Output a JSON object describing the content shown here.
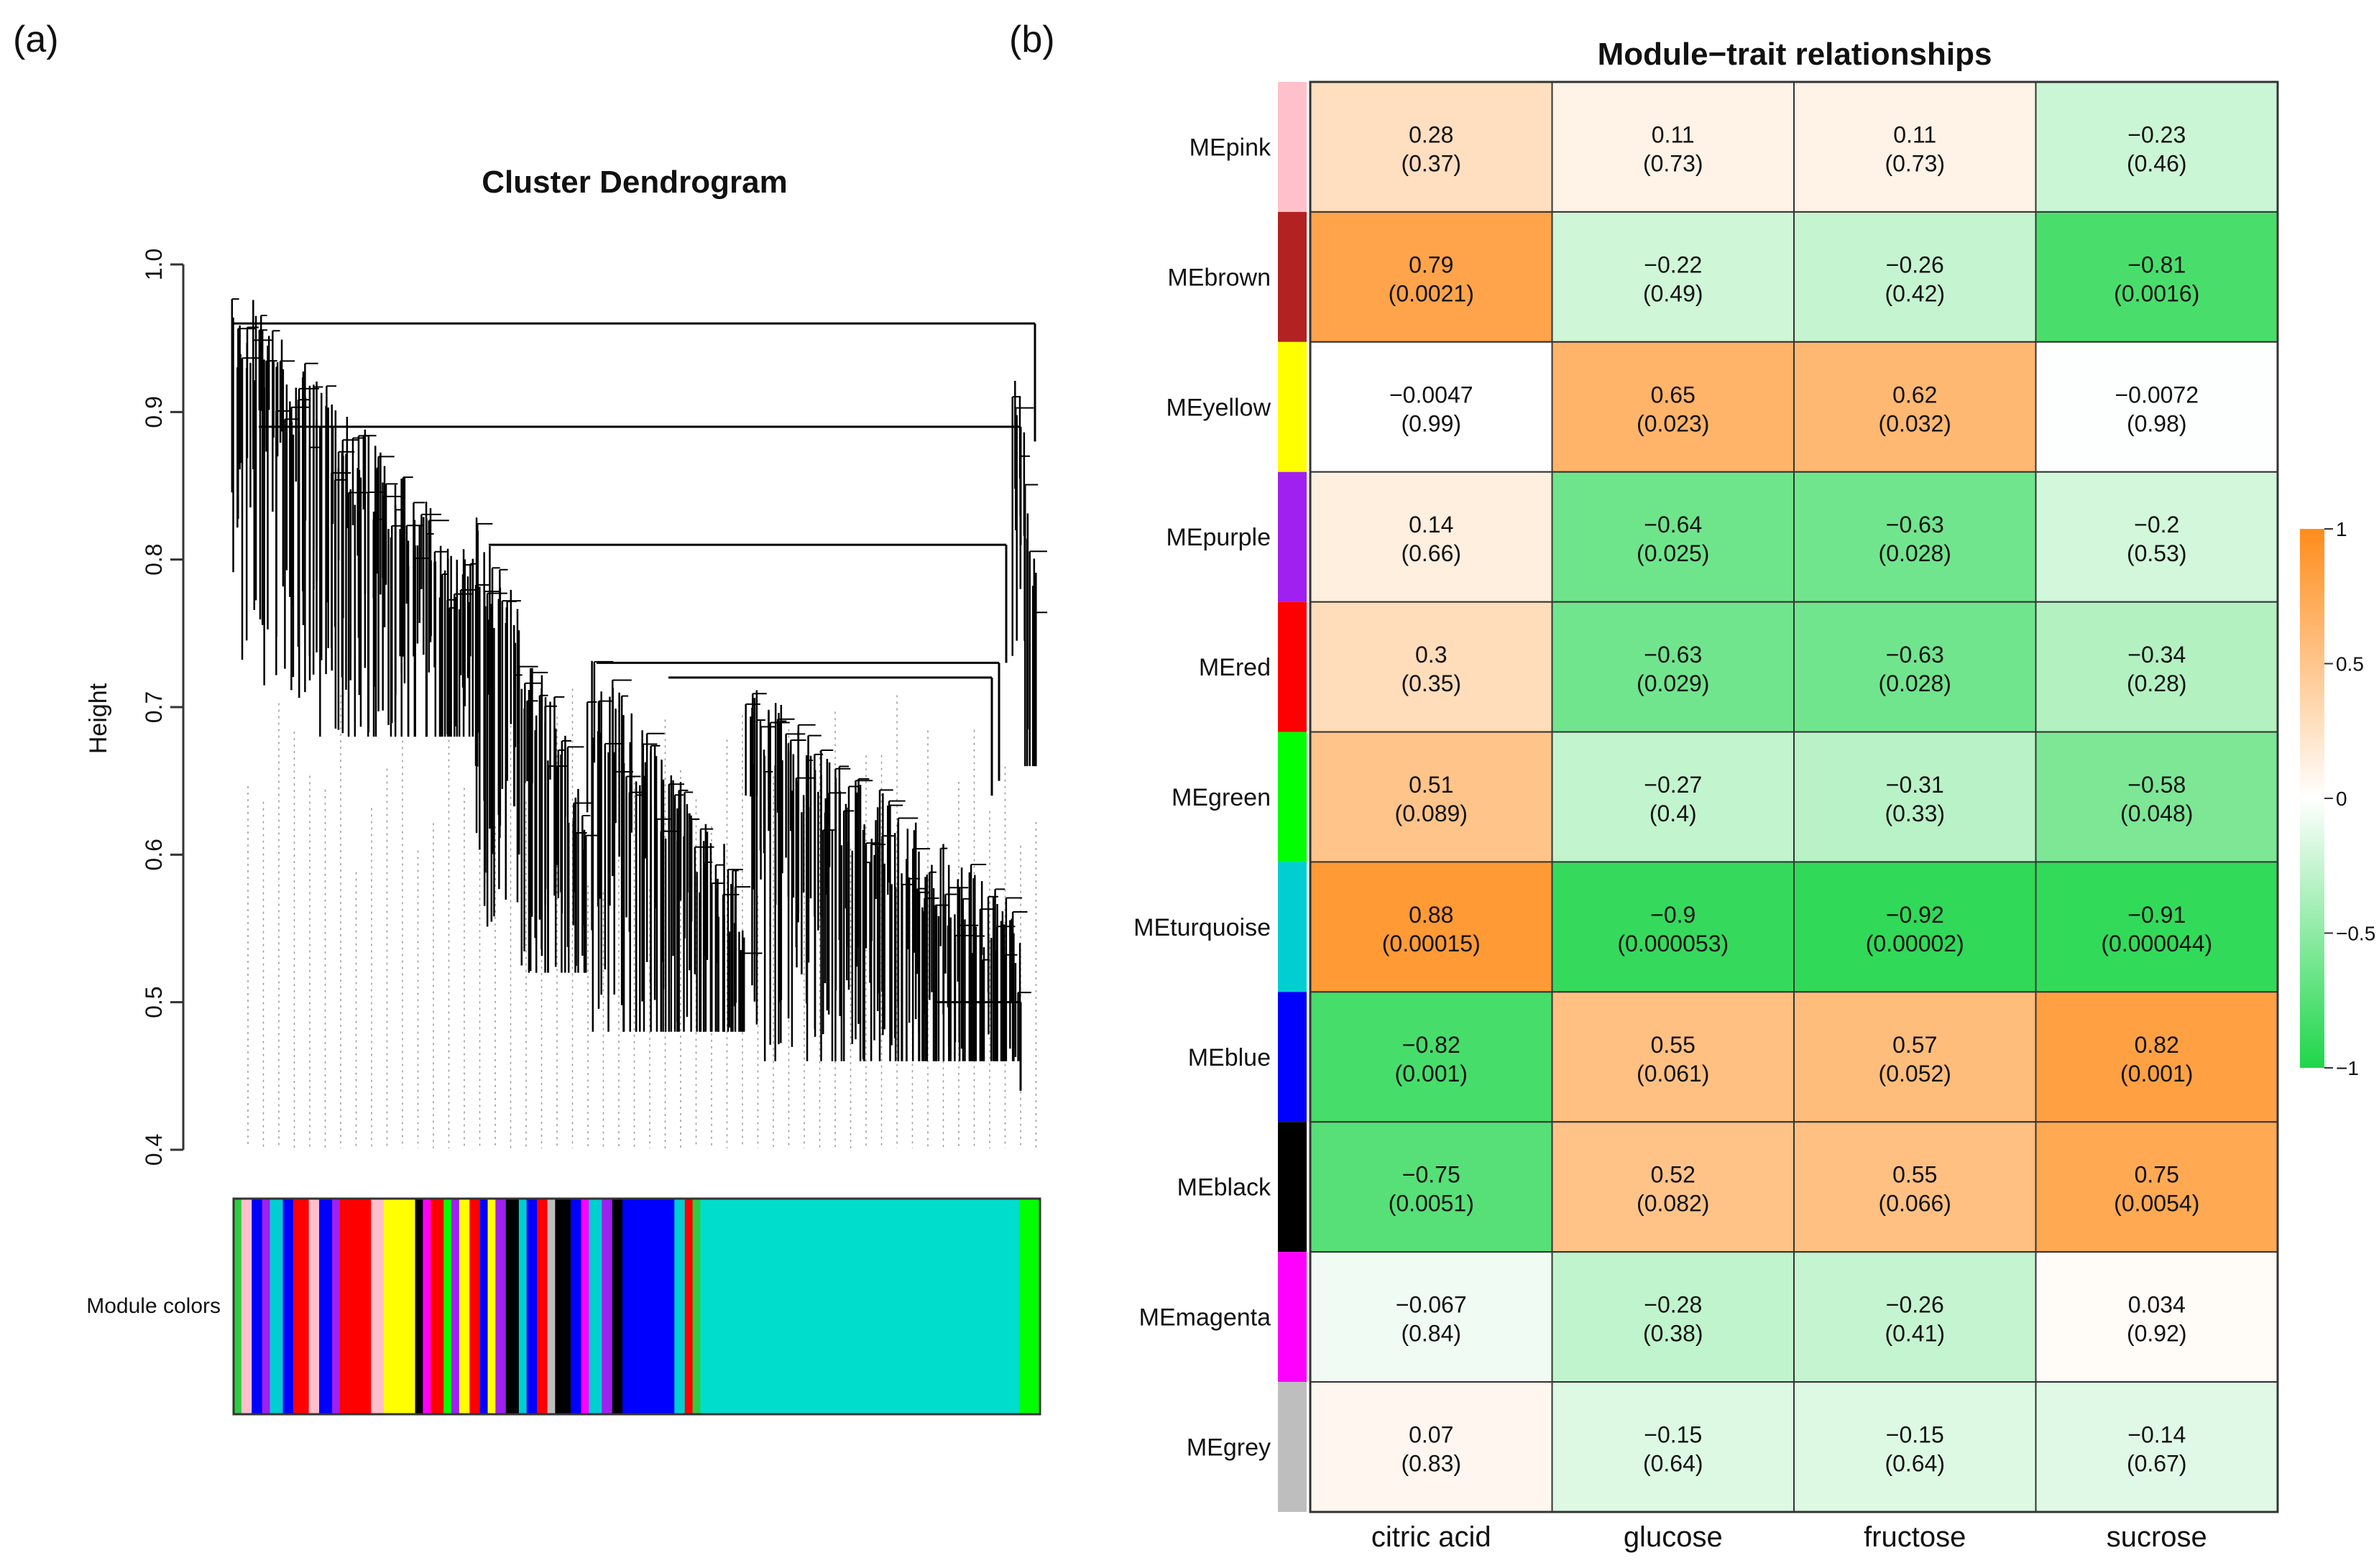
{
  "panel_a_label": "(a)",
  "panel_b_label": "(b)",
  "chart_data": [
    {
      "type": "dendrogram",
      "title": "Cluster Dendrogram",
      "ylabel": "Height",
      "ylim": [
        0.4,
        1.0
      ],
      "yticks": [
        {
          "value": 0.4,
          "label": "0.4"
        },
        {
          "value": 0.5,
          "label": "0.5"
        },
        {
          "value": 0.6,
          "label": "0.6"
        },
        {
          "value": 0.7,
          "label": "0.7"
        },
        {
          "value": 0.8,
          "label": "0.8"
        },
        {
          "value": 0.9,
          "label": "0.9"
        },
        {
          "value": 1.0,
          "label": "1.0"
        }
      ],
      "merge_heights": [
        0.99,
        0.97,
        0.96,
        0.95,
        0.93,
        0.91,
        0.89,
        0.88,
        0.87,
        0.85,
        0.84,
        0.82,
        0.81,
        0.74,
        0.73,
        0.72,
        0.5,
        0.46
      ],
      "color_bar_label": "Module colors",
      "color_bar": [
        {
          "color": "#2ecc40",
          "w": 0.3
        },
        {
          "color": "#ffc0cb",
          "w": 0.4
        },
        {
          "color": "#0000ff",
          "w": 0.4
        },
        {
          "color": "#a020f0",
          "w": 0.3
        },
        {
          "color": "#00ced1",
          "w": 0.5
        },
        {
          "color": "#0000ff",
          "w": 0.4
        },
        {
          "color": "#ff0000",
          "w": 0.6
        },
        {
          "color": "#ffc0cb",
          "w": 0.4
        },
        {
          "color": "#0000ff",
          "w": 0.5
        },
        {
          "color": "#a020f0",
          "w": 0.3
        },
        {
          "color": "#ff0000",
          "w": 1.2
        },
        {
          "color": "#ffc0cb",
          "w": 0.5
        },
        {
          "color": "#ffff00",
          "w": 1.2
        },
        {
          "color": "#000000",
          "w": 0.3
        },
        {
          "color": "#ff00ff",
          "w": 0.3
        },
        {
          "color": "#ff0000",
          "w": 0.5
        },
        {
          "color": "#00ff00",
          "w": 0.3
        },
        {
          "color": "#a020f0",
          "w": 0.3
        },
        {
          "color": "#ffff00",
          "w": 0.4
        },
        {
          "color": "#ff0000",
          "w": 0.4
        },
        {
          "color": "#0000ff",
          "w": 0.3
        },
        {
          "color": "#ffff00",
          "w": 0.3
        },
        {
          "color": "#a020f0",
          "w": 0.4
        },
        {
          "color": "#000000",
          "w": 0.5
        },
        {
          "color": "#00ced1",
          "w": 0.3
        },
        {
          "color": "#0000ff",
          "w": 0.4
        },
        {
          "color": "#ff0000",
          "w": 0.4
        },
        {
          "color": "#bebebe",
          "w": 0.3
        },
        {
          "color": "#000000",
          "w": 0.6
        },
        {
          "color": "#0000ff",
          "w": 0.4
        },
        {
          "color": "#ff00ff",
          "w": 0.3
        },
        {
          "color": "#00ced1",
          "w": 0.5
        },
        {
          "color": "#a020f0",
          "w": 0.4
        },
        {
          "color": "#000000",
          "w": 0.4
        },
        {
          "color": "#0000ff",
          "w": 2.0
        },
        {
          "color": "#00ced1",
          "w": 0.4
        },
        {
          "color": "#ff0000",
          "w": 0.3
        },
        {
          "color": "#2ecc40",
          "w": 0.3
        },
        {
          "color": "#00ddcc",
          "w": 12.3
        },
        {
          "color": "#00ff00",
          "w": 0.8
        }
      ]
    },
    {
      "type": "heatmap",
      "title": "Module−trait relationships",
      "rows": [
        "MEpink",
        "MEbrown",
        "MEyellow",
        "MEpurple",
        "MEred",
        "MEgreen",
        "MEturquoise",
        "MEblue",
        "MEblack",
        "MEmagenta",
        "MEgrey"
      ],
      "row_colors": [
        "#ffc0cb",
        "#b22222",
        "#ffff00",
        "#a020f0",
        "#ff0000",
        "#00ff00",
        "#00ced1",
        "#0000ff",
        "#000000",
        "#ff00ff",
        "#bebebe"
      ],
      "columns": [
        "citric acid",
        "glucose",
        "fructose",
        "sucrose"
      ],
      "values": [
        [
          0.28,
          0.11,
          0.11,
          -0.23
        ],
        [
          0.79,
          -0.22,
          -0.26,
          -0.81
        ],
        [
          -0.0047,
          0.65,
          0.62,
          -0.0072
        ],
        [
          0.14,
          -0.64,
          -0.63,
          -0.2
        ],
        [
          0.3,
          -0.63,
          -0.63,
          -0.34
        ],
        [
          0.51,
          -0.27,
          -0.31,
          -0.58
        ],
        [
          0.88,
          -0.9,
          -0.92,
          -0.91
        ],
        [
          -0.82,
          0.55,
          0.57,
          0.82
        ],
        [
          -0.75,
          0.52,
          0.55,
          0.75
        ],
        [
          -0.067,
          -0.28,
          -0.26,
          0.034
        ],
        [
          0.07,
          -0.15,
          -0.15,
          -0.14
        ]
      ],
      "value_labels": [
        [
          "0.28",
          "0.11",
          "0.11",
          "−0.23"
        ],
        [
          "0.79",
          "−0.22",
          "−0.26",
          "−0.81"
        ],
        [
          "−0.0047",
          "0.65",
          "0.62",
          "−0.0072"
        ],
        [
          "0.14",
          "−0.64",
          "−0.63",
          "−0.2"
        ],
        [
          "0.3",
          "−0.63",
          "−0.63",
          "−0.34"
        ],
        [
          "0.51",
          "−0.27",
          "−0.31",
          "−0.58"
        ],
        [
          "0.88",
          "−0.9",
          "−0.92",
          "−0.91"
        ],
        [
          "−0.82",
          "0.55",
          "0.57",
          "0.82"
        ],
        [
          "−0.75",
          "0.52",
          "0.55",
          "0.75"
        ],
        [
          "−0.067",
          "−0.28",
          "−0.26",
          "0.034"
        ],
        [
          "0.07",
          "−0.15",
          "−0.15",
          "−0.14"
        ]
      ],
      "p_labels": [
        [
          "(0.37)",
          "(0.73)",
          "(0.73)",
          "(0.46)"
        ],
        [
          "(0.0021)",
          "(0.49)",
          "(0.42)",
          "(0.0016)"
        ],
        [
          "(0.99)",
          "(0.023)",
          "(0.032)",
          "(0.98)"
        ],
        [
          "(0.66)",
          "(0.025)",
          "(0.028)",
          "(0.53)"
        ],
        [
          "(0.35)",
          "(0.029)",
          "(0.028)",
          "(0.28)"
        ],
        [
          "(0.089)",
          "(0.4)",
          "(0.33)",
          "(0.048)"
        ],
        [
          "(0.00015)",
          "(0.000053)",
          "(0.00002)",
          "(0.000044)"
        ],
        [
          "(0.001)",
          "(0.061)",
          "(0.052)",
          "(0.001)"
        ],
        [
          "(0.0051)",
          "(0.082)",
          "(0.066)",
          "(0.0054)"
        ],
        [
          "(0.84)",
          "(0.38)",
          "(0.41)",
          "(0.92)"
        ],
        [
          "(0.83)",
          "(0.64)",
          "(0.64)",
          "(0.67)"
        ]
      ],
      "colorscale": {
        "min": -1,
        "max": 1,
        "low_color": "#1ed64a",
        "mid_color": "#ffffff",
        "high_color": "#ff8c1a"
      },
      "colorbar_ticks": [
        {
          "value": 1,
          "label": "1"
        },
        {
          "value": 0.5,
          "label": "0.5"
        },
        {
          "value": 0,
          "label": "0"
        },
        {
          "value": -0.5,
          "label": "−0.5"
        },
        {
          "value": -1,
          "label": "−1"
        }
      ]
    }
  ]
}
